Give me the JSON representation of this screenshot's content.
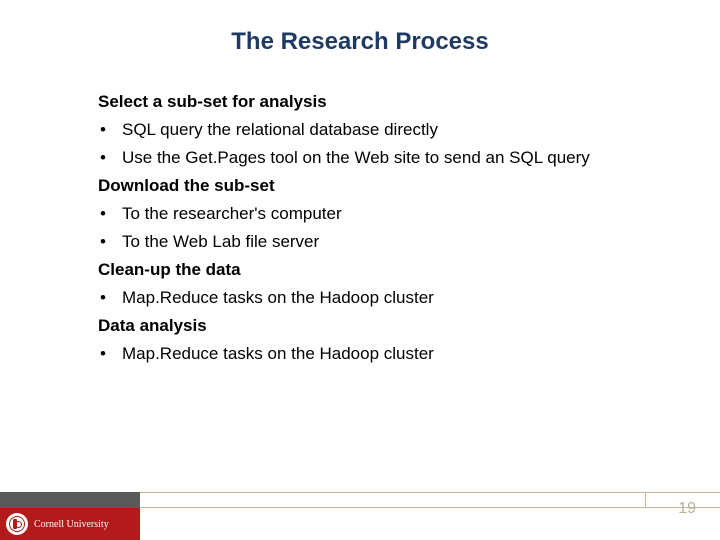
{
  "colors": {
    "title_color": "#1f3a63",
    "body_color": "#000000",
    "cornell_red": "#b31b1b",
    "footer_gray": "#5a5a5a",
    "divider_tan": "#c9b58a",
    "pagenum_color": "#b8b09a",
    "background": "#ffffff"
  },
  "typography": {
    "title_fontsize": 24,
    "body_fontsize": 17,
    "univ_fontsize": 10,
    "pagenum_fontsize": 16,
    "title_weight": "bold",
    "heading_weight": "bold"
  },
  "title": "The Research Process",
  "sections": [
    {
      "heading": "Select a sub-set for analysis",
      "bullets": [
        "SQL query the relational database directly",
        "Use the Get.Pages tool on the Web site to send an SQL query"
      ]
    },
    {
      "heading": "Download the sub-set",
      "bullets": [
        "To the researcher's computer",
        "To the Web Lab file server"
      ]
    },
    {
      "heading": "Clean-up the data",
      "bullets": [
        "Map.Reduce tasks on the Hadoop cluster"
      ]
    },
    {
      "heading": "Data analysis",
      "bullets": [
        "Map.Reduce tasks on the Hadoop cluster"
      ]
    }
  ],
  "footer": {
    "university": "Cornell University",
    "page_number": "19"
  }
}
